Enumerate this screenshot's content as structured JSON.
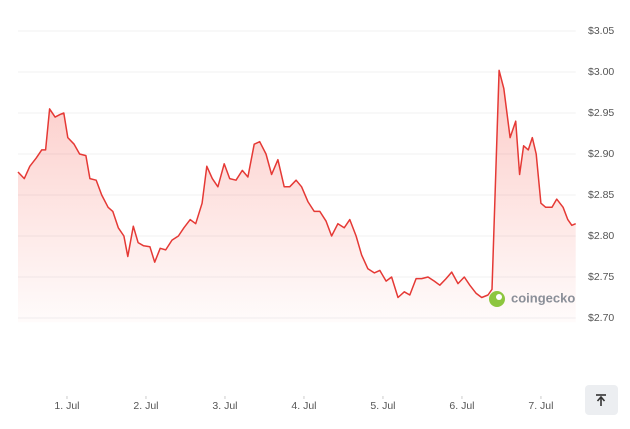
{
  "chart_data": {
    "type": "area",
    "watermark": "coingecko",
    "color": "#e53935",
    "x": [
      0.38,
      0.46,
      0.53,
      0.61,
      0.68,
      0.73,
      0.78,
      0.85,
      0.91,
      0.96,
      1.01,
      1.09,
      1.16,
      1.24,
      1.29,
      1.37,
      1.44,
      1.52,
      1.58,
      1.65,
      1.72,
      1.77,
      1.84,
      1.9,
      1.97,
      2.05,
      2.11,
      2.18,
      2.25,
      2.33,
      2.41,
      2.48,
      2.56,
      2.63,
      2.71,
      2.77,
      2.84,
      2.91,
      2.99,
      3.06,
      3.14,
      3.22,
      3.29,
      3.37,
      3.44,
      3.52,
      3.59,
      3.67,
      3.75,
      3.82,
      3.9,
      3.97,
      4.05,
      4.13,
      4.2,
      4.28,
      4.35,
      4.43,
      4.51,
      4.58,
      4.66,
      4.73,
      4.81,
      4.89,
      4.96,
      5.04,
      5.11,
      5.19,
      5.27,
      5.34,
      5.42,
      5.49,
      5.57,
      5.65,
      5.72,
      5.8,
      5.87,
      5.95,
      6.03,
      6.1,
      6.18,
      6.25,
      6.33,
      6.38,
      6.47,
      6.53,
      6.61,
      6.68,
      6.73,
      6.78,
      6.84,
      6.89,
      6.94,
      7.0,
      7.06,
      7.14,
      7.2,
      7.28,
      7.34,
      7.39,
      7.44
    ],
    "values": [
      2.878,
      2.87,
      2.885,
      2.895,
      2.905,
      2.905,
      2.955,
      2.945,
      2.948,
      2.95,
      2.92,
      2.912,
      2.9,
      2.898,
      2.87,
      2.868,
      2.85,
      2.835,
      2.83,
      2.81,
      2.8,
      2.775,
      2.812,
      2.792,
      2.788,
      2.787,
      2.768,
      2.785,
      2.783,
      2.795,
      2.8,
      2.81,
      2.82,
      2.815,
      2.84,
      2.885,
      2.87,
      2.86,
      2.888,
      2.87,
      2.868,
      2.88,
      2.872,
      2.912,
      2.915,
      2.9,
      2.875,
      2.893,
      2.86,
      2.86,
      2.868,
      2.86,
      2.842,
      2.83,
      2.83,
      2.818,
      2.8,
      2.815,
      2.81,
      2.82,
      2.8,
      2.777,
      2.76,
      2.755,
      2.758,
      2.745,
      2.75,
      2.725,
      2.732,
      2.728,
      2.748,
      2.748,
      2.75,
      2.745,
      2.74,
      2.748,
      2.756,
      2.742,
      2.75,
      2.74,
      2.73,
      2.725,
      2.728,
      2.735,
      3.002,
      2.98,
      2.92,
      2.94,
      2.875,
      2.91,
      2.905,
      2.92,
      2.9,
      2.84,
      2.835,
      2.835,
      2.845,
      2.835,
      2.82,
      2.813,
      2.815
    ],
    "xlim": [
      0.38,
      7.44
    ],
    "xticks": [
      {
        "value": 1,
        "label": "1. Jul"
      },
      {
        "value": 2,
        "label": "2. Jul"
      },
      {
        "value": 3,
        "label": "3. Jul"
      },
      {
        "value": 4,
        "label": "4. Jul"
      },
      {
        "value": 5,
        "label": "5. Jul"
      },
      {
        "value": 6,
        "label": "6. Jul"
      },
      {
        "value": 7,
        "label": "7. Jul"
      }
    ],
    "ylim": [
      2.68,
      3.06
    ],
    "yticks": [
      {
        "value": 2.7,
        "label": "$2.70"
      },
      {
        "value": 2.75,
        "label": "$2.75"
      },
      {
        "value": 2.8,
        "label": "$2.80"
      },
      {
        "value": 2.85,
        "label": "$2.85"
      },
      {
        "value": 2.9,
        "label": "$2.90"
      },
      {
        "value": 2.95,
        "label": "$2.95"
      },
      {
        "value": 3.0,
        "label": "$3.00"
      },
      {
        "value": 3.05,
        "label": "$3.05"
      }
    ],
    "grid": true
  }
}
